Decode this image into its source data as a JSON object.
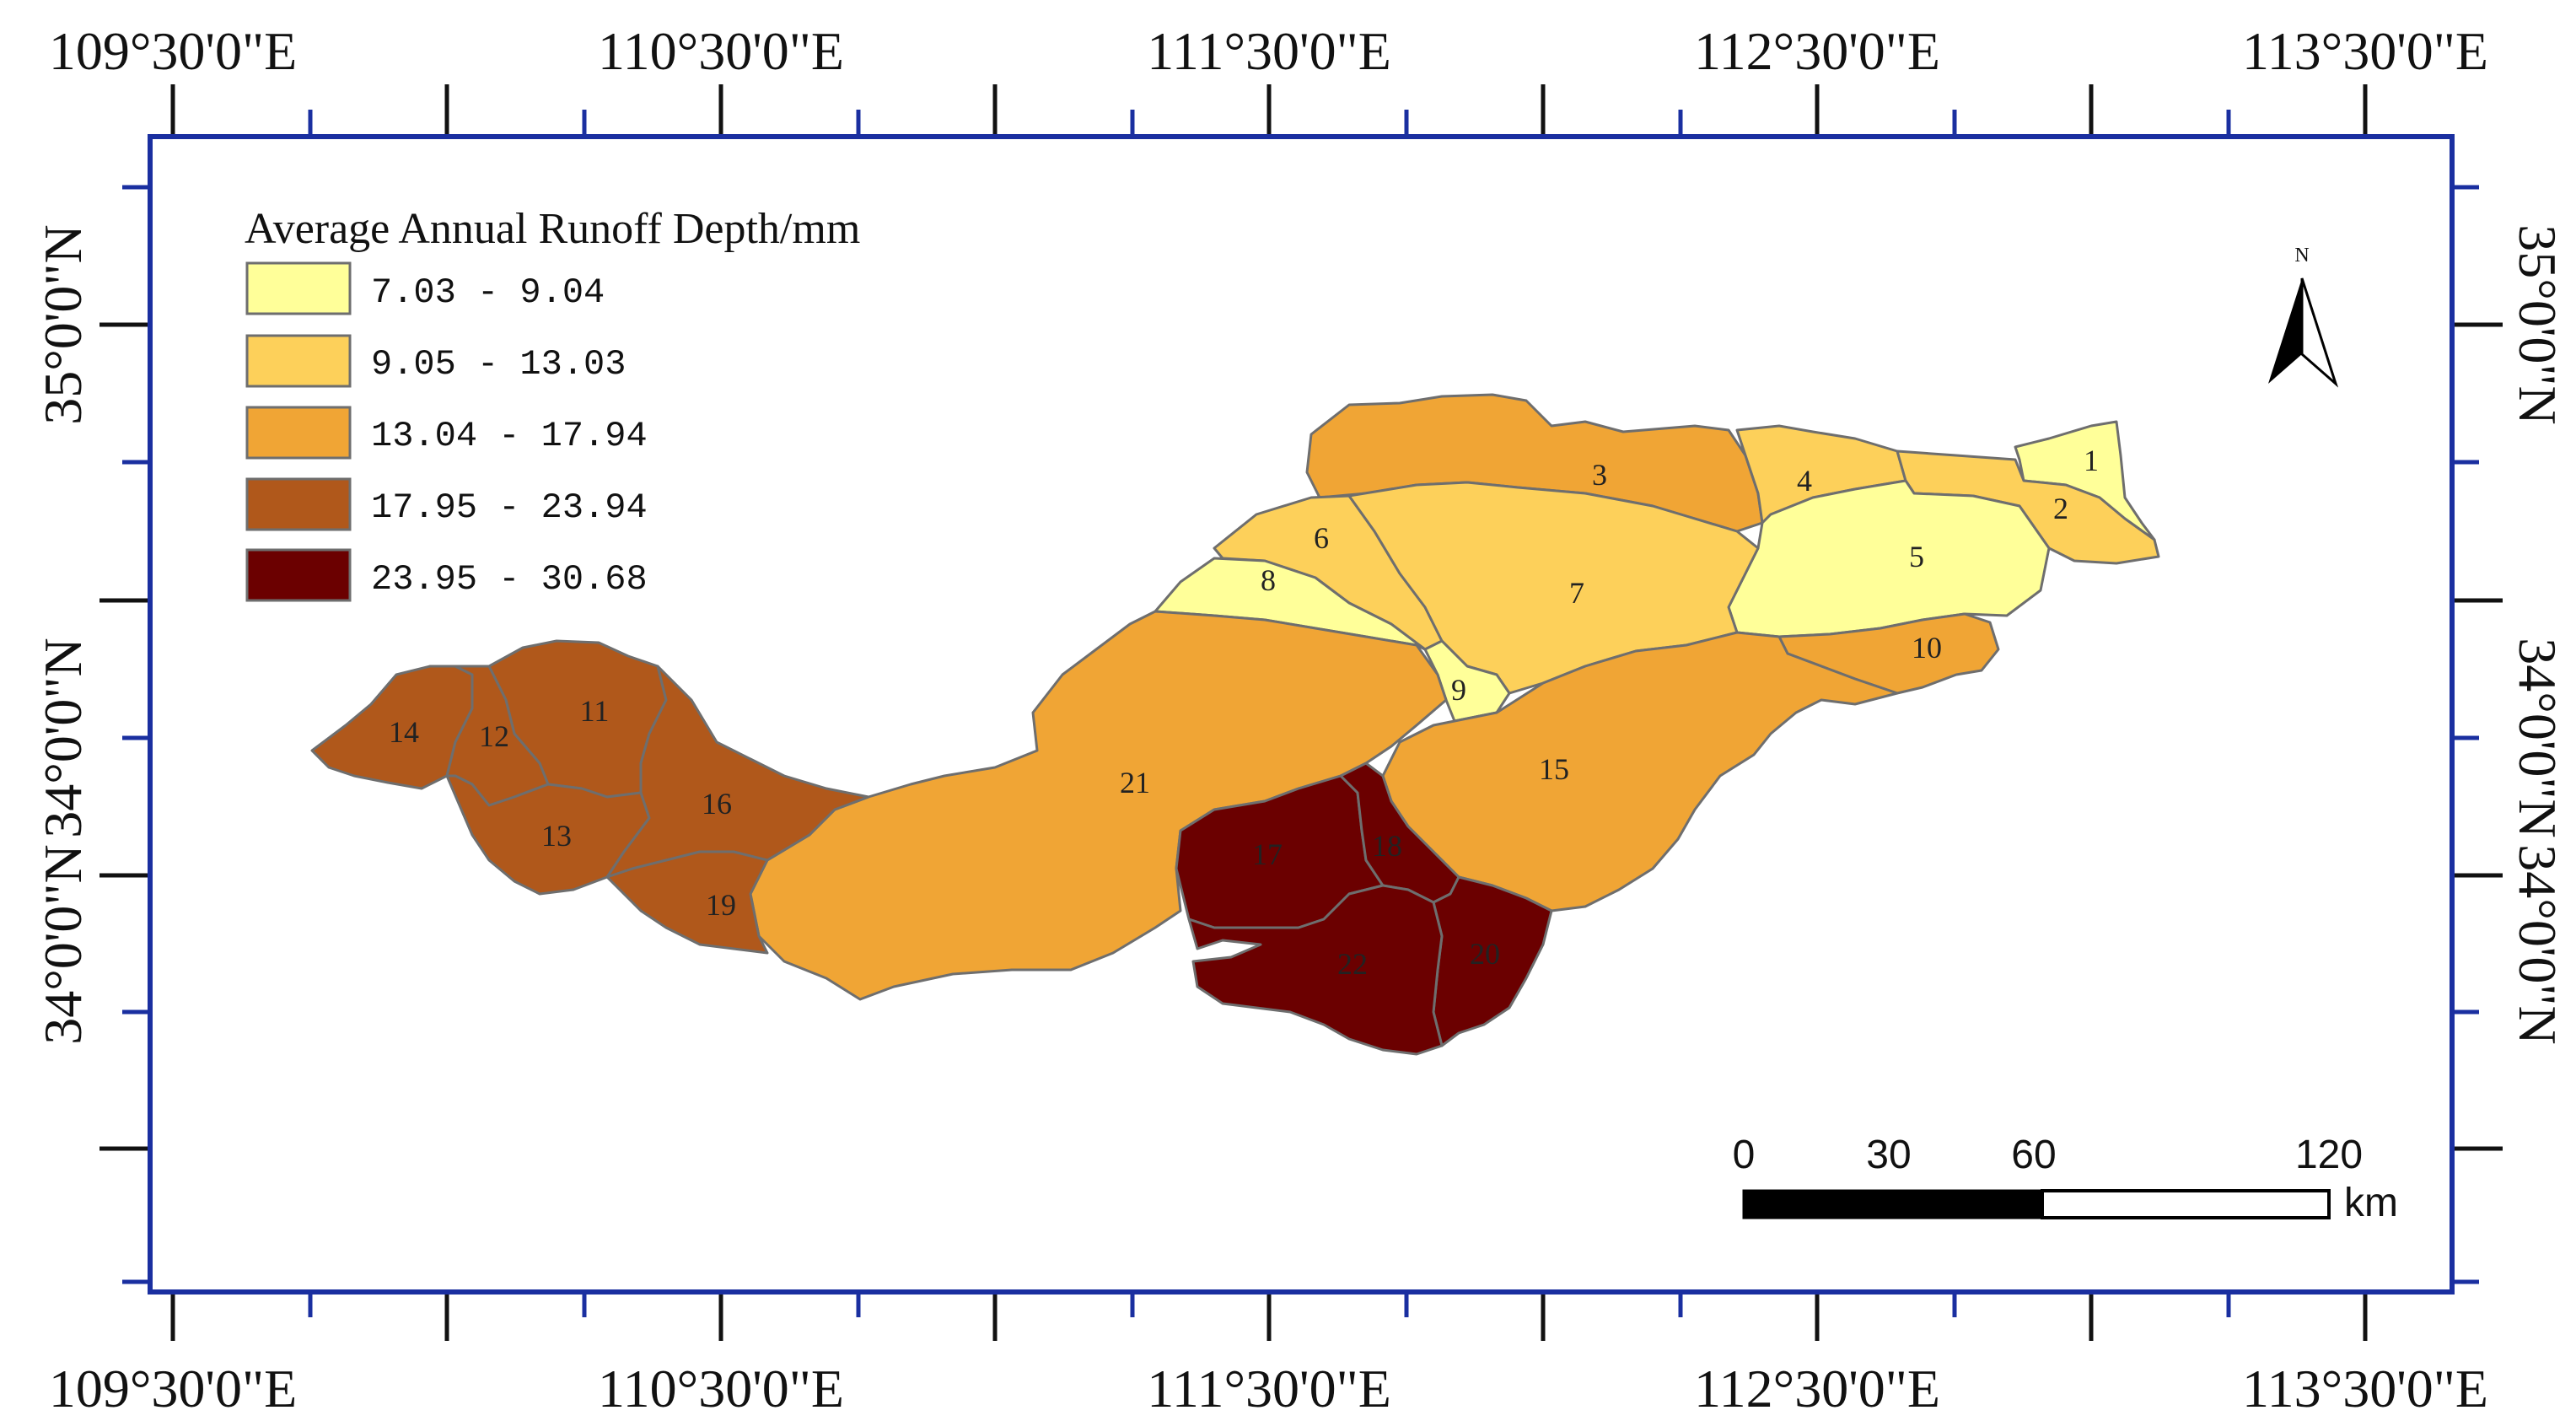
{
  "colors": {
    "frame": "#1a2fa0",
    "class1": "#ffff99",
    "class2": "#fdd05a",
    "class3": "#f0a535",
    "class4": "#b0581b",
    "class5": "#6b0000"
  },
  "map": {
    "top_lon_labels": [
      "109°30'0\"E",
      "110°30'0\"E",
      "111°30'0\"E",
      "112°30'0\"E",
      "113°30'0\"E"
    ],
    "bottom_lon_labels": [
      "109°30'0\"E",
      "110°30'0\"E",
      "111°30'0\"E",
      "112°30'0\"E",
      "113°30'0\"E"
    ],
    "left_lat_labels": [
      "35°0'0\"N",
      "34°0'0\"N",
      "34°0'0\"N"
    ],
    "right_lat_labels": [
      "35°0'0\"N",
      "34°0'0\"N",
      "34°0'0\"N"
    ],
    "legend": {
      "title": "Average Annual Runoff Depth/mm",
      "classes": [
        {
          "range": "7.03 - 9.04",
          "color": "#ffff99"
        },
        {
          "range": "9.05 - 13.03",
          "color": "#fdd05a"
        },
        {
          "range": "13.04 - 17.94",
          "color": "#f0a535"
        },
        {
          "range": "17.95 - 23.94",
          "color": "#b0581b"
        },
        {
          "range": "23.95 - 30.68",
          "color": "#6b0000"
        }
      ]
    },
    "north_arrow": {
      "label": "N",
      "icon": "north-arrow-icon"
    },
    "scale_bar": {
      "ticks": [
        "0",
        "30",
        "60",
        "120"
      ],
      "unit": "km"
    },
    "regions": [
      {
        "id": "1",
        "class": 1
      },
      {
        "id": "2",
        "class": 2
      },
      {
        "id": "3",
        "class": 3
      },
      {
        "id": "4",
        "class": 2
      },
      {
        "id": "5",
        "class": 1
      },
      {
        "id": "6",
        "class": 2
      },
      {
        "id": "7",
        "class": 2
      },
      {
        "id": "8",
        "class": 1
      },
      {
        "id": "9",
        "class": 1
      },
      {
        "id": "10",
        "class": 3
      },
      {
        "id": "11",
        "class": 4
      },
      {
        "id": "12",
        "class": 4
      },
      {
        "id": "13",
        "class": 4
      },
      {
        "id": "14",
        "class": 4
      },
      {
        "id": "15",
        "class": 3
      },
      {
        "id": "16",
        "class": 4
      },
      {
        "id": "17",
        "class": 5
      },
      {
        "id": "18",
        "class": 5
      },
      {
        "id": "19",
        "class": 4
      },
      {
        "id": "20",
        "class": 5
      },
      {
        "id": "21",
        "class": 3
      },
      {
        "id": "22",
        "class": 5
      }
    ]
  }
}
